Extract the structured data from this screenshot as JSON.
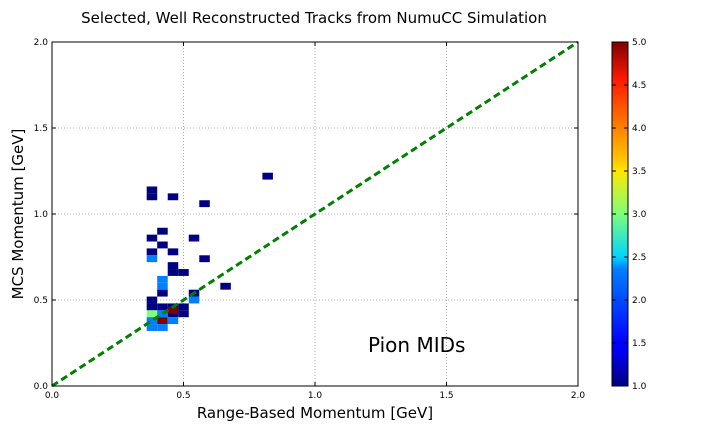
{
  "chart_data": {
    "type": "heatmap",
    "title": "Selected, Well Reconstructed Tracks from NumuCC Simulation",
    "xlabel": "Range-Based Momentum [GeV]",
    "ylabel": "MCS Momentum [GeV]",
    "xlim": [
      0.0,
      2.0
    ],
    "ylim": [
      0.0,
      2.0
    ],
    "xticks": [
      "0.0",
      "0.5",
      "1.0",
      "1.5",
      "2.0"
    ],
    "yticks": [
      "0.0",
      "0.5",
      "1.0",
      "1.5",
      "2.0"
    ],
    "grid": true,
    "bin_width": 0.04,
    "bin_height": 0.04,
    "colorbar": {
      "colormap": "jet",
      "range": [
        1.0,
        5.0
      ],
      "ticks": [
        "1.0",
        "1.5",
        "2.0",
        "2.5",
        "3.0",
        "3.5",
        "4.0",
        "4.5",
        "5.0"
      ]
    },
    "diagonal_line": {
      "x": [
        0.0,
        2.0
      ],
      "y": [
        0.0,
        2.0
      ],
      "color": "#008000",
      "style": "dashed"
    },
    "annotation": "Pion MIDs",
    "bins": [
      {
        "x": 0.8,
        "y": 1.2,
        "count": 1
      },
      {
        "x": 0.36,
        "y": 1.12,
        "count": 1
      },
      {
        "x": 0.36,
        "y": 1.08,
        "count": 1
      },
      {
        "x": 0.44,
        "y": 1.08,
        "count": 1
      },
      {
        "x": 0.56,
        "y": 1.04,
        "count": 1
      },
      {
        "x": 0.4,
        "y": 0.88,
        "count": 1
      },
      {
        "x": 0.36,
        "y": 0.84,
        "count": 1
      },
      {
        "x": 0.52,
        "y": 0.84,
        "count": 1
      },
      {
        "x": 0.4,
        "y": 0.8,
        "count": 1
      },
      {
        "x": 0.36,
        "y": 0.76,
        "count": 1
      },
      {
        "x": 0.44,
        "y": 0.76,
        "count": 1
      },
      {
        "x": 0.36,
        "y": 0.72,
        "count": 2
      },
      {
        "x": 0.56,
        "y": 0.72,
        "count": 1
      },
      {
        "x": 0.44,
        "y": 0.68,
        "count": 1
      },
      {
        "x": 0.44,
        "y": 0.64,
        "count": 1
      },
      {
        "x": 0.48,
        "y": 0.64,
        "count": 1
      },
      {
        "x": 0.4,
        "y": 0.6,
        "count": 2
      },
      {
        "x": 0.4,
        "y": 0.56,
        "count": 2
      },
      {
        "x": 0.64,
        "y": 0.56,
        "count": 1
      },
      {
        "x": 0.4,
        "y": 0.52,
        "count": 1
      },
      {
        "x": 0.52,
        "y": 0.52,
        "count": 1
      },
      {
        "x": 0.36,
        "y": 0.48,
        "count": 1
      },
      {
        "x": 0.52,
        "y": 0.48,
        "count": 2
      },
      {
        "x": 0.36,
        "y": 0.44,
        "count": 1
      },
      {
        "x": 0.4,
        "y": 0.44,
        "count": 1
      },
      {
        "x": 0.44,
        "y": 0.44,
        "count": 1
      },
      {
        "x": 0.48,
        "y": 0.44,
        "count": 1
      },
      {
        "x": 0.36,
        "y": 0.4,
        "count": 3
      },
      {
        "x": 0.4,
        "y": 0.4,
        "count": 2
      },
      {
        "x": 0.44,
        "y": 0.4,
        "count": 1
      },
      {
        "x": 0.48,
        "y": 0.4,
        "count": 1
      },
      {
        "x": 0.44,
        "y": 0.42,
        "count": 5
      },
      {
        "x": 0.36,
        "y": 0.36,
        "count": 2
      },
      {
        "x": 0.4,
        "y": 0.36,
        "count": 5
      },
      {
        "x": 0.44,
        "y": 0.36,
        "count": 2
      },
      {
        "x": 0.36,
        "y": 0.32,
        "count": 2
      },
      {
        "x": 0.4,
        "y": 0.32,
        "count": 2
      }
    ]
  }
}
